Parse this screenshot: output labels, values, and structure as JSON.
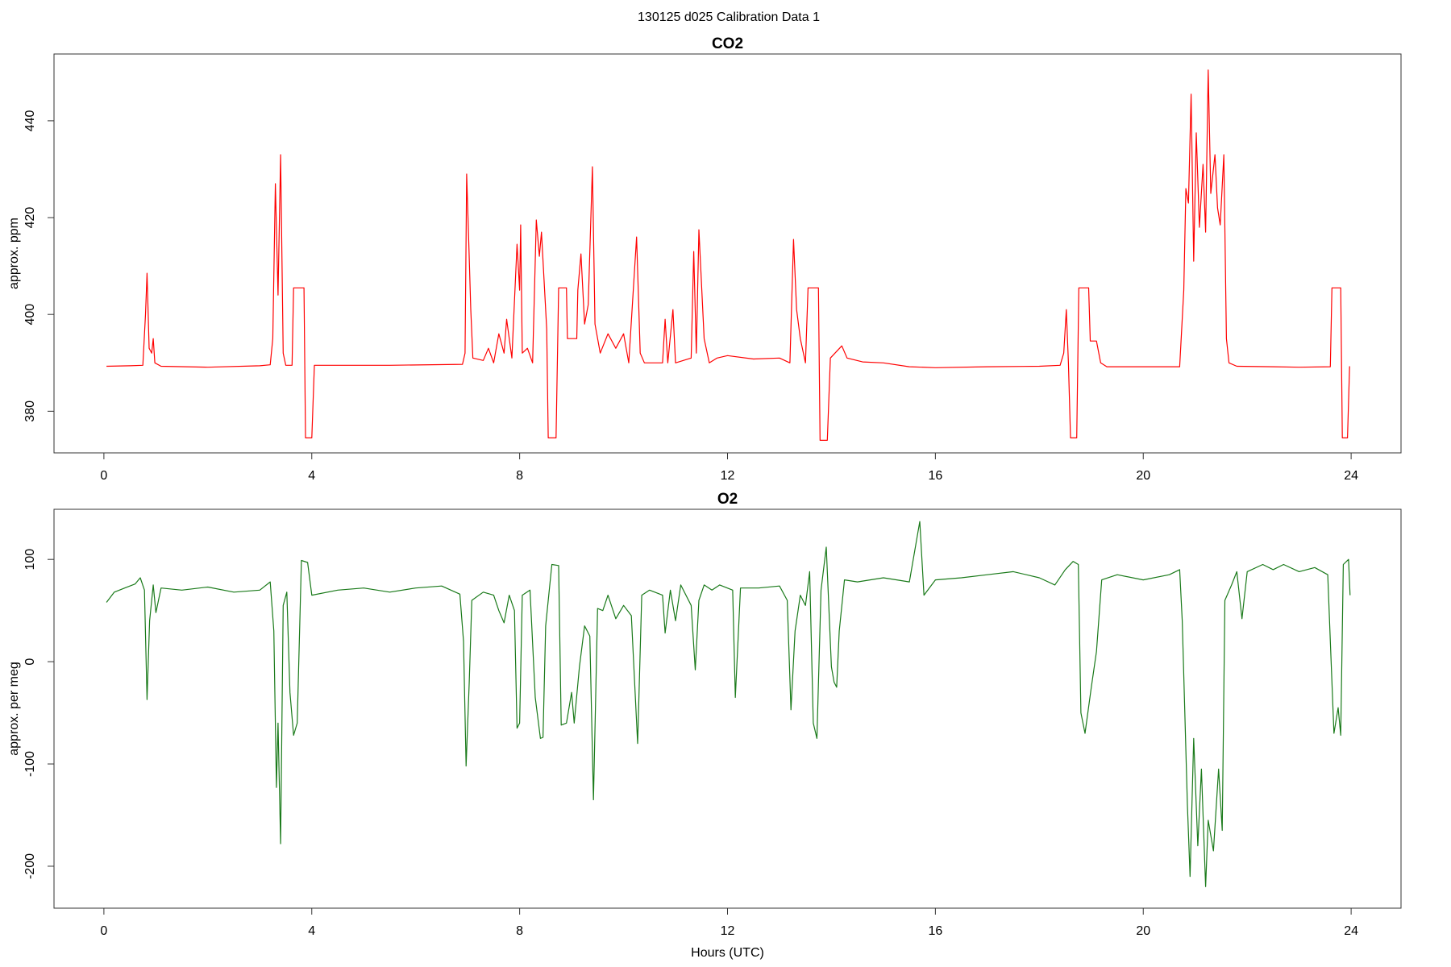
{
  "title": "130125   d025   Calibration Data 1",
  "chart_data": [
    {
      "type": "line",
      "title": "CO2",
      "y_label": "approx. ppm",
      "color": "#ff0000",
      "xlim": [
        -0.96,
        24.96
      ],
      "xticks": [
        0,
        4,
        8,
        12,
        16,
        20,
        24
      ],
      "ylim": [
        371.4,
        453.8
      ],
      "yticks": [
        380,
        400,
        420,
        440
      ],
      "x": [
        0.05,
        0.5,
        0.75,
        0.8,
        0.83,
        0.87,
        0.92,
        0.95,
        0.98,
        1.1,
        2,
        3.0,
        3.2,
        3.25,
        3.3,
        3.35,
        3.4,
        3.45,
        3.5,
        3.62,
        3.65,
        3.85,
        3.88,
        4.0,
        4.05,
        5.5,
        6.9,
        6.95,
        6.98,
        7.02,
        7.06,
        7.1,
        7.3,
        7.4,
        7.5,
        7.6,
        7.7,
        7.75,
        7.85,
        7.95,
        8.0,
        8.02,
        8.05,
        8.15,
        8.25,
        8.32,
        8.38,
        8.42,
        8.48,
        8.52,
        8.55,
        8.7,
        8.75,
        8.9,
        8.92,
        9.1,
        9.12,
        9.18,
        9.25,
        9.32,
        9.4,
        9.45,
        9.55,
        9.7,
        9.85,
        10.0,
        10.1,
        10.25,
        10.32,
        10.4,
        10.75,
        10.8,
        10.85,
        10.95,
        11.0,
        11.3,
        11.35,
        11.4,
        11.45,
        11.55,
        11.65,
        11.8,
        12,
        12.5,
        13.0,
        13.2,
        13.27,
        13.33,
        13.4,
        13.5,
        13.55,
        13.75,
        13.78,
        13.92,
        13.98,
        14.2,
        14.3,
        14.6,
        15.0,
        15.5,
        16,
        17,
        18.0,
        18.4,
        18.47,
        18.52,
        18.56,
        18.6,
        18.72,
        18.76,
        18.95,
        18.98,
        19.1,
        19.18,
        19.3,
        20.0,
        20.7,
        20.78,
        20.82,
        20.87,
        20.92,
        20.97,
        21.02,
        21.08,
        21.15,
        21.2,
        21.25,
        21.3,
        21.38,
        21.43,
        21.48,
        21.55,
        21.6,
        21.65,
        21.8,
        22.5,
        23.0,
        23.6,
        23.63,
        23.8,
        23.83,
        23.93,
        23.97
      ],
      "values": [
        389.3,
        389.4,
        389.5,
        400,
        408.5,
        393,
        392,
        395,
        390,
        389.3,
        389.1,
        389.4,
        389.6,
        395,
        427,
        404,
        433,
        392,
        389.5,
        389.5,
        405.5,
        405.5,
        374.5,
        374.5,
        389.5,
        389.5,
        389.7,
        392,
        429,
        415,
        401,
        391,
        390.5,
        393,
        390,
        396,
        392,
        399,
        391,
        414.5,
        405,
        418.5,
        392,
        393,
        390,
        419.5,
        412,
        417,
        405,
        397,
        374.5,
        374.5,
        405.5,
        405.5,
        395,
        395,
        405,
        412.5,
        398,
        402,
        430.5,
        398,
        392,
        396,
        393,
        396,
        390,
        416,
        392,
        390,
        390,
        399,
        390,
        401,
        390,
        391,
        413,
        392,
        417.5,
        395,
        390,
        391,
        391.5,
        390.8,
        391,
        390,
        415.5,
        401,
        395,
        390,
        405.5,
        405.5,
        374,
        374,
        391,
        393.5,
        391,
        390.2,
        390,
        389.2,
        389,
        389.2,
        389.3,
        389.5,
        392,
        401,
        390,
        374.5,
        374.5,
        405.5,
        405.5,
        394.5,
        394.5,
        390,
        389.2,
        389.2,
        389.2,
        405,
        426,
        423,
        445.5,
        411,
        437.5,
        418,
        431,
        417,
        450.5,
        425,
        433,
        422,
        418.5,
        433,
        395,
        390,
        389.3,
        389.2,
        389.1,
        389.2,
        405.5,
        405.5,
        374.5,
        374.5,
        389.3
      ]
    },
    {
      "type": "line",
      "title": "O2",
      "y_label": "approx. per meg",
      "x_label": "Hours (UTC)",
      "color": "#1a7a1a",
      "xlim": [
        -0.96,
        24.96
      ],
      "xticks": [
        0,
        4,
        8,
        12,
        16,
        20,
        24
      ],
      "ylim": [
        -241,
        149
      ],
      "yticks": [
        -200,
        -100,
        0,
        100
      ],
      "x": [
        0.05,
        0.2,
        0.4,
        0.6,
        0.7,
        0.78,
        0.83,
        0.88,
        0.95,
        1.0,
        1.1,
        1.5,
        2.0,
        2.5,
        3.0,
        3.2,
        3.27,
        3.32,
        3.35,
        3.4,
        3.45,
        3.52,
        3.58,
        3.65,
        3.72,
        3.8,
        3.92,
        4.0,
        4.5,
        5.0,
        5.5,
        6.0,
        6.5,
        6.85,
        6.92,
        6.97,
        7.03,
        7.08,
        7.3,
        7.5,
        7.6,
        7.7,
        7.8,
        7.9,
        7.95,
        8.0,
        8.05,
        8.2,
        8.3,
        8.4,
        8.45,
        8.5,
        8.55,
        8.62,
        8.75,
        8.8,
        8.9,
        9.0,
        9.05,
        9.15,
        9.25,
        9.35,
        9.42,
        9.5,
        9.6,
        9.7,
        9.85,
        10.0,
        10.15,
        10.27,
        10.35,
        10.5,
        10.75,
        10.8,
        10.9,
        11.0,
        11.1,
        11.3,
        11.38,
        11.45,
        11.55,
        11.7,
        11.85,
        12.1,
        12.15,
        12.25,
        12.6,
        13.0,
        13.15,
        13.22,
        13.3,
        13.4,
        13.5,
        13.58,
        13.65,
        13.72,
        13.8,
        13.9,
        14.0,
        14.05,
        14.1,
        14.15,
        14.25,
        14.5,
        15.0,
        15.5,
        15.7,
        15.78,
        16.0,
        16.5,
        17,
        17.5,
        18.0,
        18.3,
        18.5,
        18.65,
        18.75,
        18.8,
        18.88,
        19.0,
        19.1,
        19.2,
        19.5,
        20.0,
        20.5,
        20.7,
        20.75,
        20.85,
        20.9,
        20.97,
        21.05,
        21.12,
        21.2,
        21.25,
        21.35,
        21.45,
        21.52,
        21.57,
        21.7,
        21.8,
        21.9,
        22.0,
        22.3,
        22.5,
        22.7,
        23.0,
        23.3,
        23.55,
        23.6,
        23.67,
        23.75,
        23.8,
        23.85,
        23.95,
        23.98
      ],
      "values": [
        58,
        68,
        72,
        76,
        82,
        70,
        -37,
        40,
        75,
        48,
        72,
        70,
        73,
        68,
        70,
        78,
        30,
        -123,
        -60,
        -178,
        55,
        68,
        -30,
        -72,
        -60,
        99,
        97,
        65,
        70,
        72,
        68,
        72,
        74,
        66,
        20,
        -102,
        -20,
        60,
        68,
        65,
        50,
        38,
        65,
        50,
        -65,
        -60,
        65,
        70,
        -35,
        -75,
        -74,
        35,
        60,
        95,
        94,
        -62,
        -60,
        -30,
        -60,
        -5,
        35,
        25,
        -135,
        52,
        50,
        65,
        42,
        55,
        45,
        -80,
        65,
        70,
        65,
        28,
        70,
        40,
        75,
        55,
        -8,
        60,
        75,
        70,
        75,
        70,
        -35,
        72,
        72,
        74,
        60,
        -47,
        30,
        65,
        55,
        88,
        -60,
        -75,
        70,
        112,
        -5,
        -20,
        -25,
        30,
        80,
        78,
        82,
        78,
        137,
        65,
        80,
        82,
        85,
        88,
        82,
        75,
        90,
        98,
        95,
        -50,
        -70,
        -25,
        10,
        80,
        85,
        80,
        85,
        90,
        40,
        -140,
        -210,
        -75,
        -180,
        -105,
        -220,
        -155,
        -185,
        -105,
        -165,
        60,
        75,
        88,
        42,
        88,
        95,
        90,
        95,
        88,
        92,
        85,
        20,
        -70,
        -45,
        -72,
        95,
        100,
        65
      ]
    }
  ]
}
